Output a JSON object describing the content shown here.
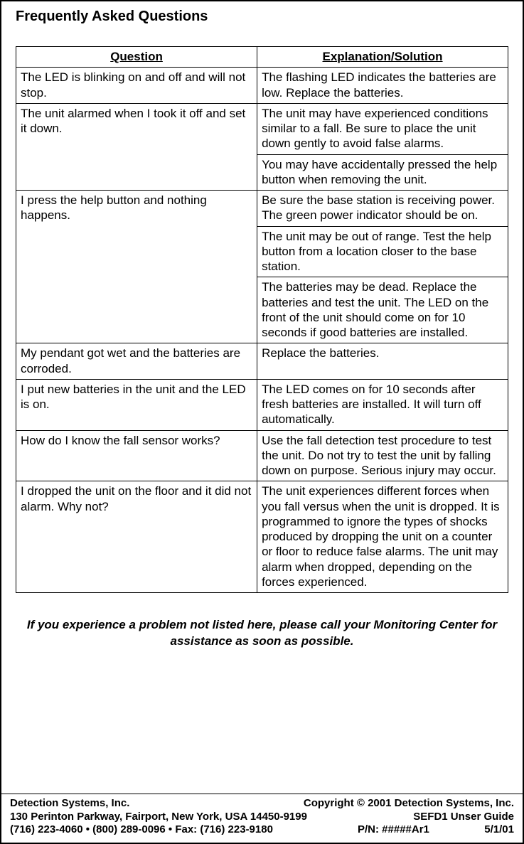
{
  "title": "Frequently Asked Questions",
  "headers": {
    "question": "Question",
    "explanation": "Explanation/Solution"
  },
  "rows": {
    "r1": {
      "q": "The LED is blinking on and off and will not stop.",
      "a": "The flashing LED indicates the batteries are low. Replace the batteries."
    },
    "r2a": {
      "q": "The unit alarmed when I took it off and set it down.",
      "a": "The unit may have experienced conditions similar to a fall. Be sure to place the unit down gently to avoid false alarms."
    },
    "r2b": {
      "a": "You may have accidentally pressed the help button when removing the unit."
    },
    "r3a": {
      "q": "I press the help button and nothing happens.",
      "a": "Be sure the base station is receiving power. The green power indicator should be on."
    },
    "r3b": {
      "a": "The unit may be out of range. Test the help button from a location closer to the base station."
    },
    "r3c": {
      "a": "The batteries may be dead. Replace the batteries and test the unit. The LED on the front of the unit should come on for 10 seconds if good batteries are installed."
    },
    "r4": {
      "q": "My pendant got wet and the batteries are corroded.",
      "a": "Replace the batteries."
    },
    "r5": {
      "q": "I put new batteries in the unit and the LED is on.",
      "a": "The LED comes on for 10 seconds after fresh batteries are installed. It will turn off automatically."
    },
    "r6": {
      "q": "How do I know the fall sensor works?",
      "a": "Use the fall detection test procedure to test the unit. Do not try to test the unit by falling down on purpose. Serious injury may occur."
    },
    "r7": {
      "q": "I dropped the unit on the floor and it did not alarm. Why not?",
      "a": "The unit experiences different forces when you fall versus when the unit is dropped. It is programmed to ignore the types of shocks produced by dropping the unit on a counter or floor to reduce false alarms. The unit may alarm when dropped, depending on the forces experienced."
    }
  },
  "note": "If you experience a problem not listed here, please call your Monitoring Center for assistance as soon as possible.",
  "footer": {
    "company": "Detection Systems, Inc.",
    "copyright": "Copyright © 2001 Detection Systems, Inc.",
    "address": "130 Perinton Parkway, Fairport, New York, USA 14450-9199",
    "guide": "SEFD1 Unser Guide",
    "phones": "(716) 223-4060 • (800) 289-0096 • Fax: (716) 223-9180",
    "pn": "P/N: #####Ar1",
    "date": "5/1/01"
  }
}
